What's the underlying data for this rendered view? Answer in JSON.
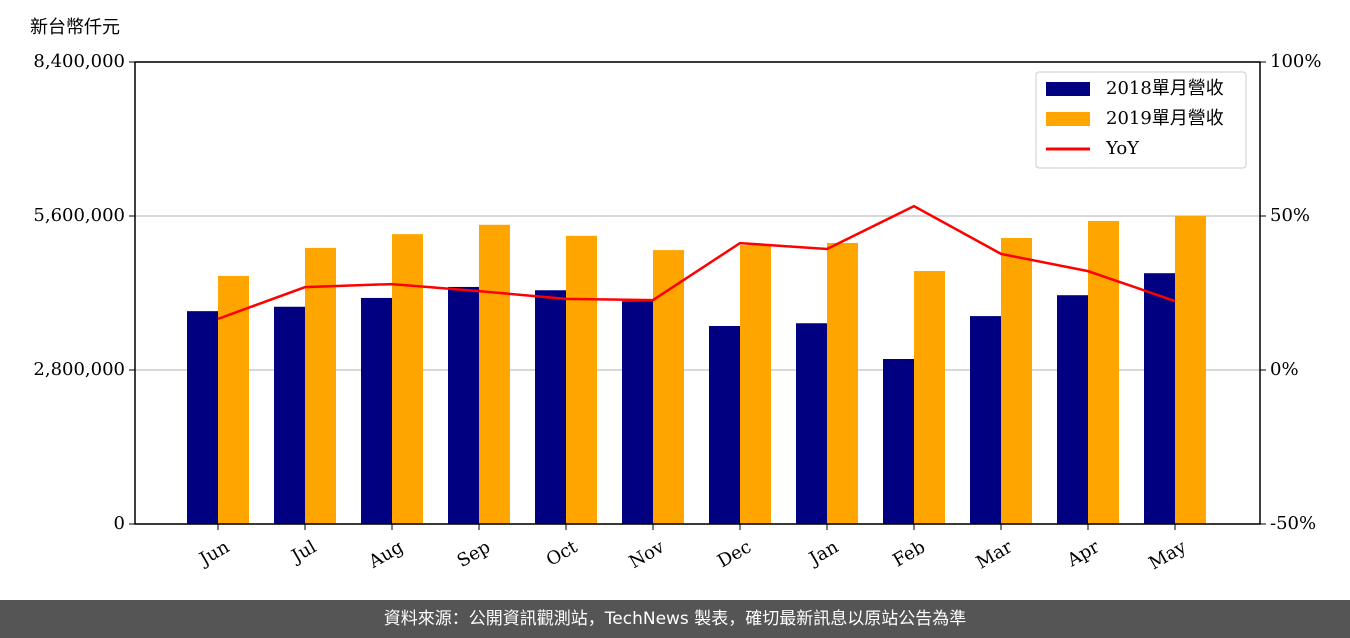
{
  "chart_data": {
    "type": "bar_line",
    "y_label": "新台幣仟元",
    "categories": [
      "Jun",
      "Jul",
      "Aug",
      "Sep",
      "Oct",
      "Nov",
      "Dec",
      "Jan",
      "Feb",
      "Mar",
      "Apr",
      "May"
    ],
    "series": [
      {
        "name": "2018單月營收",
        "type": "bar",
        "color": "#000080",
        "values": [
          3870000,
          3950000,
          4110000,
          4310000,
          4250000,
          4050000,
          3600000,
          3650000,
          3000000,
          3780000,
          4160000,
          4560000
        ]
      },
      {
        "name": "2019單月營收",
        "type": "bar",
        "color": "#ffa500",
        "values": [
          4510000,
          5020000,
          5270000,
          5440000,
          5240000,
          4980000,
          5070000,
          5110000,
          4600000,
          5200000,
          5510000,
          5600000
        ]
      },
      {
        "name": "YoY",
        "type": "line",
        "axis": "y2",
        "color": "#ff0000",
        "values": [
          16.6,
          26.9,
          27.9,
          25.6,
          23.1,
          22.7,
          41.2,
          39.3,
          53.2,
          37.7,
          32.1,
          22.4
        ]
      }
    ],
    "ylim": [
      0,
      8400000
    ],
    "yticks": [
      0,
      {
        "value": 2800000,
        "label": "2,800,000"
      },
      {
        "value": 5600000,
        "label": "5,600,000"
      },
      {
        "value": 8400000,
        "label": "8,400,000"
      }
    ],
    "y2lim": [
      -50,
      100
    ],
    "y2ticks": [
      {
        "value": -50,
        "label": "-50%"
      },
      {
        "value": 0,
        "label": "0%"
      },
      {
        "value": 50,
        "label": "50%"
      },
      {
        "value": 100,
        "label": "100%"
      }
    ],
    "grid": true,
    "legend": "upper right"
  },
  "footer": "資料來源：公開資訊觀測站，TechNews 製表，確切最新訊息以原站公告為準"
}
